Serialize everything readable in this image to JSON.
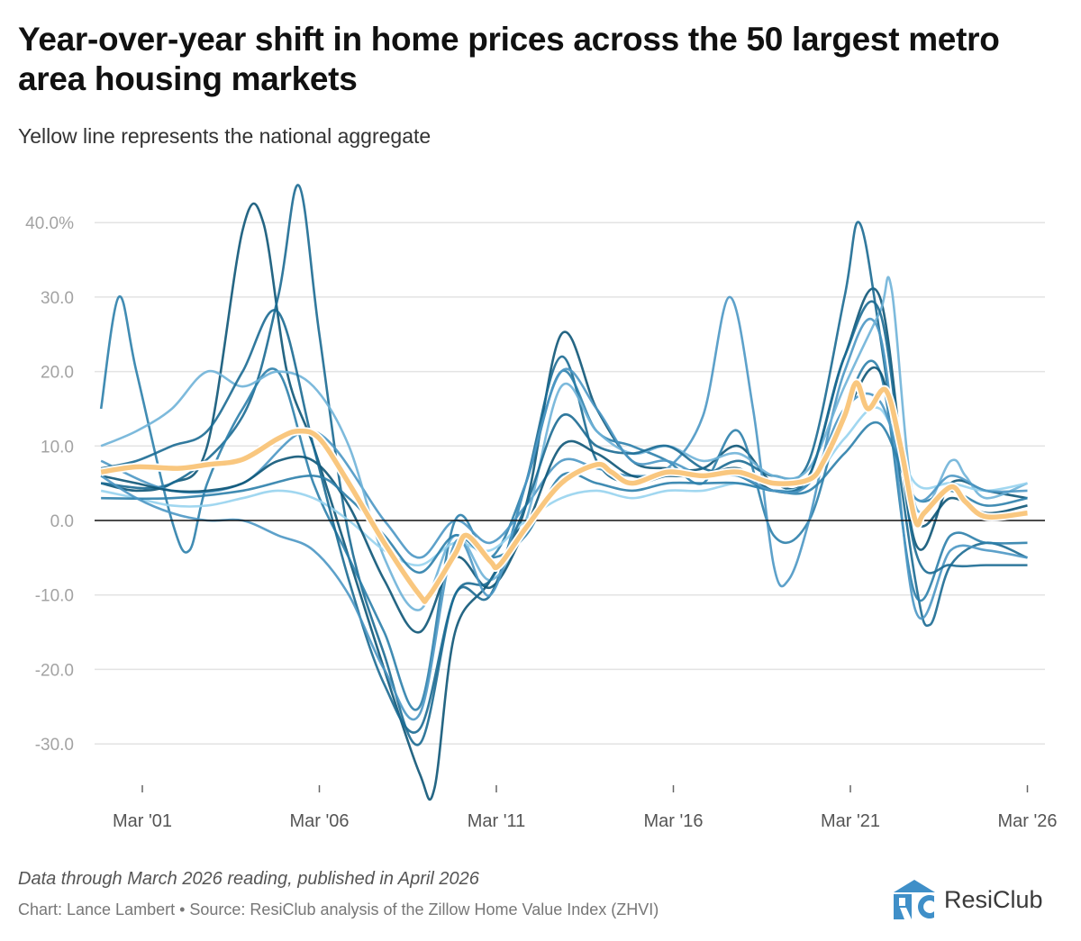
{
  "header": {
    "title": "Year-over-year shift in home prices across the 50 largest metro area housing markets",
    "subtitle": "Yellow line represents the national aggregate"
  },
  "footer": {
    "note": "Data through March 2026 reading, published in April 2026",
    "source": "Chart: Lance Lambert • Source: ResiClub analysis of the Zillow Home Value Index (ZHVI)",
    "logo_text": "ResiClub",
    "logo_mark": "RC"
  },
  "colors": {
    "national": "#f9c77f",
    "metros": [
      "#0d5577",
      "#1b6a92",
      "#2c7fab",
      "#4b97c4",
      "#6fb2d8",
      "#97d3ee"
    ],
    "grid": "#e3e3e3",
    "zero_line": "#111111",
    "logo": "#3f8fc8"
  },
  "chart_data": {
    "type": "line",
    "title": "Year-over-year shift in home prices across the 50 largest metro area housing markets",
    "xlabel": "",
    "ylabel": "",
    "x_range": [
      "2000-01",
      "2026-03"
    ],
    "ylim": [
      -36,
      46
    ],
    "y_ticks": [
      {
        "value": 40,
        "label": "40.0%"
      },
      {
        "value": 30,
        "label": "30.0"
      },
      {
        "value": 20,
        "label": "20.0"
      },
      {
        "value": 10,
        "label": "10.0"
      },
      {
        "value": 0,
        "label": "0.0"
      },
      {
        "value": -10,
        "label": "-10.0"
      },
      {
        "value": -20,
        "label": "-20.0"
      },
      {
        "value": -30,
        "label": "-30.0"
      }
    ],
    "x_ticks": [
      {
        "value": "2001-03",
        "label": "Mar '01"
      },
      {
        "value": "2006-03",
        "label": "Mar '06"
      },
      {
        "value": "2011-03",
        "label": "Mar '11"
      },
      {
        "value": "2016-03",
        "label": "Mar '16"
      },
      {
        "value": "2021-03",
        "label": "Mar '21"
      },
      {
        "value": "2026-03",
        "label": "Mar '26"
      }
    ],
    "grid": true,
    "legend": "none",
    "national": [
      [
        "2000-01",
        6.5
      ],
      [
        "2001-01",
        7.2
      ],
      [
        "2002-03",
        7.0
      ],
      [
        "2003-01",
        7.5
      ],
      [
        "2004-01",
        8.2
      ],
      [
        "2005-01",
        11
      ],
      [
        "2005-08",
        12
      ],
      [
        "2006-03",
        11
      ],
      [
        "2007-01",
        5
      ],
      [
        "2008-01",
        -3
      ],
      [
        "2009-01",
        -10
      ],
      [
        "2009-04",
        -10.2
      ],
      [
        "2010-01",
        -4.5
      ],
      [
        "2010-05",
        -2
      ],
      [
        "2011-01",
        -5.5
      ],
      [
        "2011-04",
        -6
      ],
      [
        "2012-01",
        -1
      ],
      [
        "2013-01",
        5
      ],
      [
        "2014-01",
        7.5
      ],
      [
        "2014-06",
        6.5
      ],
      [
        "2015-01",
        5
      ],
      [
        "2016-01",
        6.5
      ],
      [
        "2017-01",
        6
      ],
      [
        "2018-01",
        6.5
      ],
      [
        "2019-01",
        5
      ],
      [
        "2020-01",
        5.5
      ],
      [
        "2020-06",
        8
      ],
      [
        "2021-01",
        14
      ],
      [
        "2021-05",
        18.5
      ],
      [
        "2021-09",
        15
      ],
      [
        "2022-03",
        17.5
      ],
      [
        "2022-08",
        10
      ],
      [
        "2023-01",
        0
      ],
      [
        "2023-04",
        1
      ],
      [
        "2024-01",
        4.5
      ],
      [
        "2024-06",
        2.5
      ],
      [
        "2025-01",
        0.5
      ],
      [
        "2026-03",
        1
      ]
    ],
    "metro_series": [
      [
        [
          "2000-01",
          5
        ],
        [
          "2001-01",
          4
        ],
        [
          "2002-01",
          5
        ],
        [
          "2003-01",
          10
        ],
        [
          "2004-01",
          39
        ],
        [
          "2004-08",
          40
        ],
        [
          "2005-04",
          20
        ],
        [
          "2006-01",
          10
        ],
        [
          "2007-01",
          -5
        ],
        [
          "2008-01",
          -20
        ],
        [
          "2009-01",
          -34
        ],
        [
          "2009-06",
          -36
        ],
        [
          "2010-01",
          -15
        ],
        [
          "2011-01",
          -8
        ],
        [
          "2012-01",
          2
        ],
        [
          "2013-01",
          25
        ],
        [
          "2014-01",
          15
        ],
        [
          "2015-01",
          8
        ],
        [
          "2016-01",
          7
        ],
        [
          "2017-01",
          7
        ],
        [
          "2018-01",
          10
        ],
        [
          "2019-01",
          5
        ],
        [
          "2020-01",
          6
        ],
        [
          "2021-01",
          22
        ],
        [
          "2022-01",
          30
        ],
        [
          "2023-01",
          -3
        ],
        [
          "2024-01",
          5
        ],
        [
          "2025-01",
          4
        ],
        [
          "2026-03",
          3
        ]
      ],
      [
        [
          "2000-01",
          5
        ],
        [
          "2002-01",
          5
        ],
        [
          "2004-01",
          14
        ],
        [
          "2005-01",
          30
        ],
        [
          "2005-08",
          45
        ],
        [
          "2006-03",
          25
        ],
        [
          "2007-01",
          -2
        ],
        [
          "2008-01",
          -18
        ],
        [
          "2009-01",
          -30
        ],
        [
          "2010-01",
          -10
        ],
        [
          "2011-01",
          -10
        ],
        [
          "2012-01",
          5
        ],
        [
          "2013-01",
          22
        ],
        [
          "2014-01",
          8
        ],
        [
          "2015-01",
          5
        ],
        [
          "2016-01",
          6
        ],
        [
          "2017-01",
          6
        ],
        [
          "2018-01",
          8
        ],
        [
          "2019-01",
          6
        ],
        [
          "2020-01",
          8
        ],
        [
          "2021-01",
          30
        ],
        [
          "2021-06",
          40
        ],
        [
          "2022-01",
          25
        ],
        [
          "2023-01",
          -8
        ],
        [
          "2023-06",
          -14
        ],
        [
          "2024-01",
          -6
        ],
        [
          "2025-01",
          -3
        ],
        [
          "2026-03",
          -5
        ]
      ],
      [
        [
          "2000-01",
          15
        ],
        [
          "2000-07",
          30
        ],
        [
          "2001-01",
          20
        ],
        [
          "2002-01",
          0
        ],
        [
          "2002-07",
          -4
        ],
        [
          "2003-01",
          5
        ],
        [
          "2004-01",
          15
        ],
        [
          "2005-01",
          20
        ],
        [
          "2006-01",
          5
        ],
        [
          "2007-01",
          -5
        ],
        [
          "2008-01",
          -15
        ],
        [
          "2009-01",
          -25
        ],
        [
          "2010-01",
          0
        ],
        [
          "2011-01",
          -5
        ],
        [
          "2012-01",
          5
        ],
        [
          "2013-01",
          20
        ],
        [
          "2014-01",
          12
        ],
        [
          "2015-01",
          10
        ],
        [
          "2016-01",
          8
        ],
        [
          "2017-01",
          5
        ],
        [
          "2018-01",
          12
        ],
        [
          "2019-01",
          -2
        ],
        [
          "2020-01",
          0
        ],
        [
          "2021-01",
          15
        ],
        [
          "2022-01",
          20
        ],
        [
          "2023-01",
          -10
        ],
        [
          "2024-01",
          -2
        ],
        [
          "2025-01",
          -3
        ],
        [
          "2026-03",
          -3
        ]
      ],
      [
        [
          "2000-01",
          8
        ],
        [
          "2002-01",
          4
        ],
        [
          "2004-01",
          5
        ],
        [
          "2006-01",
          12
        ],
        [
          "2008-01",
          0
        ],
        [
          "2009-01",
          -5
        ],
        [
          "2010-01",
          0
        ],
        [
          "2011-01",
          -3
        ],
        [
          "2012-01",
          2
        ],
        [
          "2013-01",
          8
        ],
        [
          "2014-01",
          7
        ],
        [
          "2015-01",
          6
        ],
        [
          "2016-01",
          7
        ],
        [
          "2017-01",
          14
        ],
        [
          "2017-10",
          30
        ],
        [
          "2018-06",
          15
        ],
        [
          "2019-01",
          -6
        ],
        [
          "2019-06",
          -8
        ],
        [
          "2020-01",
          0
        ],
        [
          "2021-01",
          20
        ],
        [
          "2022-01",
          25
        ],
        [
          "2023-01",
          -12
        ],
        [
          "2024-01",
          -4
        ],
        [
          "2025-01",
          -4
        ],
        [
          "2026-03",
          -5
        ]
      ],
      [
        [
          "2000-01",
          10
        ],
        [
          "2001-01",
          12
        ],
        [
          "2002-01",
          15
        ],
        [
          "2003-01",
          20
        ],
        [
          "2004-01",
          18
        ],
        [
          "2005-01",
          20
        ],
        [
          "2006-01",
          18
        ],
        [
          "2007-01",
          10
        ],
        [
          "2008-01",
          -5
        ],
        [
          "2009-01",
          -12
        ],
        [
          "2010-01",
          -2
        ],
        [
          "2011-01",
          -8
        ],
        [
          "2012-01",
          0
        ],
        [
          "2013-01",
          18
        ],
        [
          "2014-01",
          12
        ],
        [
          "2015-01",
          9
        ],
        [
          "2016-01",
          10
        ],
        [
          "2017-01",
          8
        ],
        [
          "2018-01",
          9
        ],
        [
          "2019-01",
          6
        ],
        [
          "2020-01",
          7
        ],
        [
          "2021-01",
          18
        ],
        [
          "2022-01",
          28
        ],
        [
          "2022-05",
          31
        ],
        [
          "2023-01",
          2
        ],
        [
          "2024-01",
          8
        ],
        [
          "2024-06",
          6
        ],
        [
          "2025-01",
          3
        ],
        [
          "2026-03",
          5
        ]
      ],
      [
        [
          "2000-01",
          4
        ],
        [
          "2001-01",
          3
        ],
        [
          "2002-01",
          2
        ],
        [
          "2003-01",
          2
        ],
        [
          "2004-01",
          3
        ],
        [
          "2005-01",
          4
        ],
        [
          "2006-01",
          3
        ],
        [
          "2007-01",
          0
        ],
        [
          "2008-01",
          -4
        ],
        [
          "2009-01",
          -6
        ],
        [
          "2010-01",
          -3
        ],
        [
          "2011-01",
          -4
        ],
        [
          "2012-01",
          0
        ],
        [
          "2013-01",
          3
        ],
        [
          "2014-01",
          4
        ],
        [
          "2015-01",
          3
        ],
        [
          "2016-01",
          4
        ],
        [
          "2017-01",
          4
        ],
        [
          "2018-01",
          5
        ],
        [
          "2019-01",
          4
        ],
        [
          "2020-01",
          5
        ],
        [
          "2021-01",
          11
        ],
        [
          "2022-01",
          15
        ],
        [
          "2023-01",
          5
        ],
        [
          "2024-01",
          5
        ],
        [
          "2025-01",
          4
        ],
        [
          "2026-03",
          5
        ]
      ],
      [
        [
          "2000-01",
          6
        ],
        [
          "2001-01",
          5
        ],
        [
          "2002-01",
          4
        ],
        [
          "2003-01",
          4
        ],
        [
          "2004-01",
          5
        ],
        [
          "2005-01",
          8
        ],
        [
          "2006-01",
          8
        ],
        [
          "2007-01",
          2
        ],
        [
          "2008-01",
          -8
        ],
        [
          "2009-01",
          -15
        ],
        [
          "2010-01",
          -5
        ],
        [
          "2011-01",
          -9
        ],
        [
          "2012-01",
          -1
        ],
        [
          "2013-01",
          10
        ],
        [
          "2014-01",
          9
        ],
        [
          "2015-01",
          6
        ],
        [
          "2016-01",
          6
        ],
        [
          "2017-01",
          6
        ],
        [
          "2018-01",
          7
        ],
        [
          "2019-01",
          4
        ],
        [
          "2020-01",
          5
        ],
        [
          "2021-01",
          14
        ],
        [
          "2022-01",
          20
        ],
        [
          "2023-01",
          0
        ],
        [
          "2024-01",
          3
        ],
        [
          "2025-01",
          1
        ],
        [
          "2026-03",
          2
        ]
      ],
      [
        [
          "2000-01",
          7
        ],
        [
          "2001-01",
          8
        ],
        [
          "2002-01",
          10
        ],
        [
          "2003-01",
          12
        ],
        [
          "2004-01",
          20
        ],
        [
          "2005-01",
          28
        ],
        [
          "2006-01",
          10
        ],
        [
          "2007-01",
          -8
        ],
        [
          "2008-01",
          -22
        ],
        [
          "2009-01",
          -28
        ],
        [
          "2010-01",
          -10
        ],
        [
          "2011-01",
          -8
        ],
        [
          "2012-01",
          2
        ],
        [
          "2013-01",
          14
        ],
        [
          "2014-01",
          10
        ],
        [
          "2015-01",
          9
        ],
        [
          "2016-01",
          10
        ],
        [
          "2017-01",
          7
        ],
        [
          "2018-01",
          6
        ],
        [
          "2019-01",
          4
        ],
        [
          "2020-01",
          6
        ],
        [
          "2021-01",
          22
        ],
        [
          "2022-01",
          28
        ],
        [
          "2023-01",
          -4
        ],
        [
          "2024-01",
          -6
        ],
        [
          "2025-01",
          -6
        ],
        [
          "2026-03",
          -6
        ]
      ],
      [
        [
          "2000-01",
          3
        ],
        [
          "2002-01",
          3
        ],
        [
          "2004-01",
          4
        ],
        [
          "2006-01",
          6
        ],
        [
          "2007-01",
          3
        ],
        [
          "2008-01",
          -2
        ],
        [
          "2009-01",
          -7
        ],
        [
          "2010-01",
          -2
        ],
        [
          "2011-01",
          -5
        ],
        [
          "2012-01",
          -2
        ],
        [
          "2013-01",
          6
        ],
        [
          "2014-01",
          5
        ],
        [
          "2015-01",
          4
        ],
        [
          "2016-01",
          5
        ],
        [
          "2017-01",
          5
        ],
        [
          "2018-01",
          5
        ],
        [
          "2019-01",
          4
        ],
        [
          "2020-01",
          4
        ],
        [
          "2021-01",
          9
        ],
        [
          "2022-01",
          13
        ],
        [
          "2023-01",
          3
        ],
        [
          "2024-01",
          4
        ],
        [
          "2025-01",
          2
        ],
        [
          "2026-03",
          3
        ]
      ],
      [
        [
          "2000-01",
          6
        ],
        [
          "2001-01",
          3
        ],
        [
          "2002-01",
          1
        ],
        [
          "2003-01",
          0
        ],
        [
          "2004-01",
          0
        ],
        [
          "2005-01",
          -2
        ],
        [
          "2006-01",
          -4
        ],
        [
          "2007-01",
          -10
        ],
        [
          "2008-01",
          -20
        ],
        [
          "2009-01",
          -26
        ],
        [
          "2010-01",
          -3
        ],
        [
          "2011-01",
          -10
        ],
        [
          "2012-01",
          5
        ],
        [
          "2013-01",
          20
        ],
        [
          "2014-01",
          15
        ],
        [
          "2015-01",
          8
        ],
        [
          "2016-01",
          8
        ],
        [
          "2017-01",
          6
        ],
        [
          "2018-01",
          6
        ],
        [
          "2019-01",
          4
        ],
        [
          "2020-01",
          5
        ],
        [
          "2021-01",
          15
        ],
        [
          "2022-01",
          16
        ],
        [
          "2023-01",
          3
        ],
        [
          "2024-01",
          6
        ],
        [
          "2025-01",
          4
        ],
        [
          "2026-03",
          4
        ]
      ]
    ]
  }
}
